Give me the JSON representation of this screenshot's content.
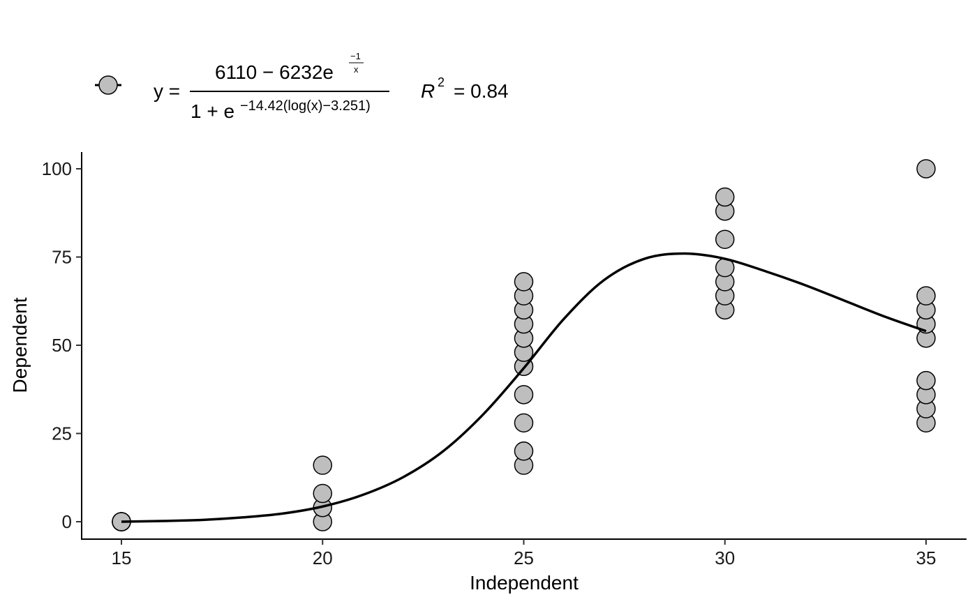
{
  "chart_data": {
    "type": "scatter",
    "xlabel": "Independent",
    "ylabel": "Dependent",
    "xlim": [
      14,
      36
    ],
    "ylim": [
      -5,
      105
    ],
    "x_ticks": [
      15,
      20,
      25,
      30,
      35
    ],
    "y_ticks": [
      0,
      25,
      50,
      75,
      100
    ],
    "grid": false,
    "legend_position": "top-left",
    "point_fill": "#bebebe",
    "point_stroke": "#000000",
    "line_color": "#000000",
    "points": [
      {
        "x": 15,
        "y": 0
      },
      {
        "x": 15,
        "y": 0
      },
      {
        "x": 15,
        "y": 0
      },
      {
        "x": 15,
        "y": 0
      },
      {
        "x": 15,
        "y": 0
      },
      {
        "x": 20,
        "y": 0
      },
      {
        "x": 20,
        "y": 4
      },
      {
        "x": 20,
        "y": 8
      },
      {
        "x": 20,
        "y": 16
      },
      {
        "x": 25,
        "y": 16
      },
      {
        "x": 25,
        "y": 20
      },
      {
        "x": 25,
        "y": 28
      },
      {
        "x": 25,
        "y": 36
      },
      {
        "x": 25,
        "y": 44
      },
      {
        "x": 25,
        "y": 48
      },
      {
        "x": 25,
        "y": 52
      },
      {
        "x": 25,
        "y": 56
      },
      {
        "x": 25,
        "y": 60
      },
      {
        "x": 25,
        "y": 64
      },
      {
        "x": 25,
        "y": 68
      },
      {
        "x": 30,
        "y": 60
      },
      {
        "x": 30,
        "y": 64
      },
      {
        "x": 30,
        "y": 68
      },
      {
        "x": 30,
        "y": 72
      },
      {
        "x": 30,
        "y": 80
      },
      {
        "x": 30,
        "y": 88
      },
      {
        "x": 30,
        "y": 92
      },
      {
        "x": 35,
        "y": 28
      },
      {
        "x": 35,
        "y": 32
      },
      {
        "x": 35,
        "y": 36
      },
      {
        "x": 35,
        "y": 40
      },
      {
        "x": 35,
        "y": 52
      },
      {
        "x": 35,
        "y": 56
      },
      {
        "x": 35,
        "y": 60
      },
      {
        "x": 35,
        "y": 64
      },
      {
        "x": 35,
        "y": 100
      }
    ],
    "fit_curve": {
      "x": [
        15,
        16,
        17,
        18,
        19,
        20,
        21,
        22,
        23,
        24,
        25,
        26,
        27,
        28,
        29,
        30,
        31,
        32,
        33,
        34,
        35
      ],
      "y": [
        0,
        0.2,
        0.5,
        1.2,
        2.3,
        4.3,
        7.6,
        12.6,
        20,
        30.5,
        43.5,
        57.5,
        68.5,
        74.5,
        76,
        74.5,
        71,
        67,
        62.5,
        58,
        54
      ]
    },
    "legend": {
      "lhs": "y =",
      "numerator": "6110 − 6232e",
      "numerator_exp_top": "−1",
      "numerator_exp_bottom": "x",
      "denominator": "1 + e",
      "denominator_exp": "−14.42(log(x)−3.251)",
      "r2_symbol": "R",
      "r2_power": "2",
      "r2_value": "= 0.84"
    }
  }
}
